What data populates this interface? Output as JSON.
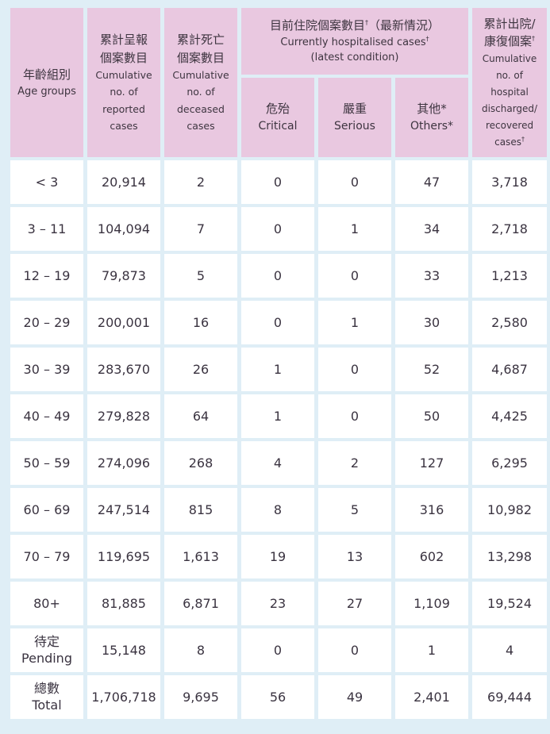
{
  "headers": {
    "age_groups": {
      "zh": "年齡組別",
      "en": "Age groups"
    },
    "reported": {
      "zh": "累計呈報個案數目",
      "en": "Cumulative no. of reported cases"
    },
    "deceased": {
      "zh": "累計死亡個案數目",
      "en": "Cumulative no. of deceased cases"
    },
    "hospitalised": {
      "zh": "目前住院個案數目",
      "zh_suffix": "（最新情況）",
      "dagger": "†",
      "en_line1": "Currently hospitalised cases",
      "en_line2": "(latest condition)"
    },
    "critical": {
      "zh": "危殆",
      "en": "Critical"
    },
    "serious": {
      "zh": "嚴重",
      "en": "Serious"
    },
    "others": {
      "zh": "其他*",
      "en": "Others*"
    },
    "discharged": {
      "zh_line1": "累計出院/",
      "zh_line2": "康復個案",
      "dagger": "†",
      "en_line1": "Cumulative",
      "en_line2": "no. of",
      "en_line3": "hospital",
      "en_line4": "discharged/",
      "en_line5": "recovered",
      "en_line6": "cases"
    }
  },
  "rows": [
    {
      "age": "< 3",
      "reported": "20,914",
      "deceased": "2",
      "critical": "0",
      "serious": "0",
      "others": "47",
      "discharged": "3,718"
    },
    {
      "age": "3 – 11",
      "reported": "104,094",
      "deceased": "7",
      "critical": "0",
      "serious": "1",
      "others": "34",
      "discharged": "2,718"
    },
    {
      "age": "12 – 19",
      "reported": "79,873",
      "deceased": "5",
      "critical": "0",
      "serious": "0",
      "others": "33",
      "discharged": "1,213"
    },
    {
      "age": "20 – 29",
      "reported": "200,001",
      "deceased": "16",
      "critical": "0",
      "serious": "1",
      "others": "30",
      "discharged": "2,580"
    },
    {
      "age": "30 – 39",
      "reported": "283,670",
      "deceased": "26",
      "critical": "1",
      "serious": "0",
      "others": "52",
      "discharged": "4,687"
    },
    {
      "age": "40 – 49",
      "reported": "279,828",
      "deceased": "64",
      "critical": "1",
      "serious": "0",
      "others": "50",
      "discharged": "4,425"
    },
    {
      "age": "50 – 59",
      "reported": "274,096",
      "deceased": "268",
      "critical": "4",
      "serious": "2",
      "others": "127",
      "discharged": "6,295"
    },
    {
      "age": "60 – 69",
      "reported": "247,514",
      "deceased": "815",
      "critical": "8",
      "serious": "5",
      "others": "316",
      "discharged": "10,982"
    },
    {
      "age": "70 – 79",
      "reported": "119,695",
      "deceased": "1,613",
      "critical": "19",
      "serious": "13",
      "others": "602",
      "discharged": "13,298"
    },
    {
      "age": "80+",
      "reported": "81,885",
      "deceased": "6,871",
      "critical": "23",
      "serious": "27",
      "others": "1,109",
      "discharged": "19,524"
    }
  ],
  "pending": {
    "age_zh": "待定",
    "age_en": "Pending",
    "reported": "15,148",
    "deceased": "8",
    "critical": "0",
    "serious": "0",
    "others": "1",
    "discharged": "4"
  },
  "total": {
    "age_zh": "總數",
    "age_en": "Total",
    "reported": "1,706,718",
    "deceased": "9,695",
    "critical": "56",
    "serious": "49",
    "others": "2,401",
    "discharged": "69,444"
  },
  "colors": {
    "background": "#dfeef6",
    "header": "#e9c8e0",
    "cell": "#ffffff",
    "text": "#3a3340"
  }
}
